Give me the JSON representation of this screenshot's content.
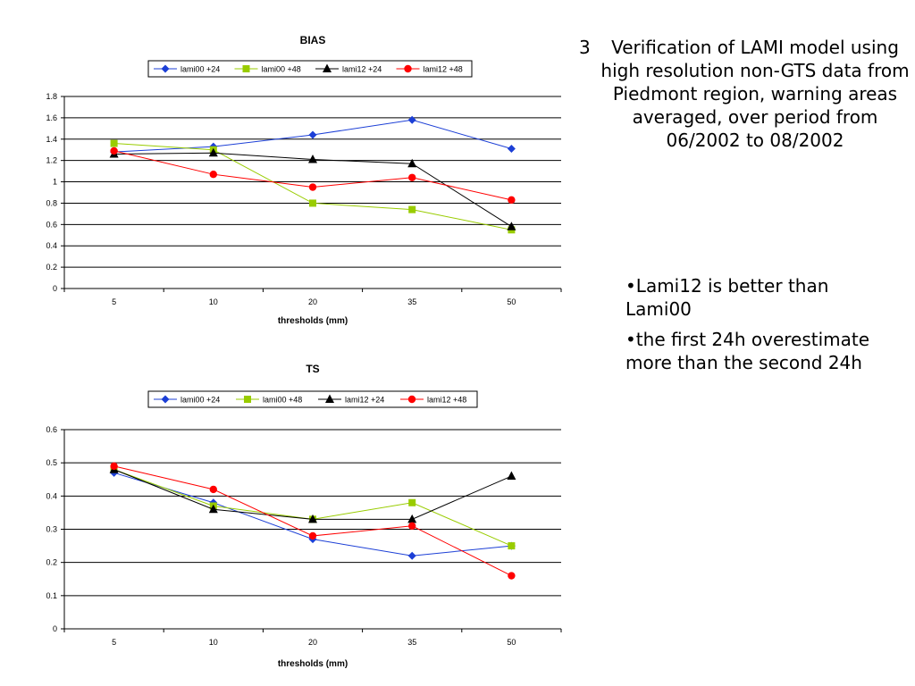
{
  "slide": {
    "heading_number": "3",
    "heading_text": "Verification of LAMI model using high resolution non-GTS data from Piedmont region, warning areas averaged, over period from 06/2002 to 08/2002",
    "bullets": [
      "•Lami12 is better than Lami00",
      "•the first 24h overestimate more than the second 24h"
    ]
  },
  "colors": {
    "lami00_24": "#1c3fd6",
    "lami00_48": "#99cc00",
    "lami12_24": "#000000",
    "lami12_48": "#ff0000"
  },
  "chart_data": [
    {
      "type": "line",
      "title": "BIAS",
      "xlabel": "thresholds (mm)",
      "ylabel": "",
      "categories": [
        "5",
        "10",
        "20",
        "35",
        "50"
      ],
      "ylim": [
        0,
        1.8
      ],
      "yticks": [
        "0",
        "0.2",
        "0.4",
        "0.6",
        "0.8",
        "1",
        "1.2",
        "1.4",
        "1.6",
        "1.8"
      ],
      "grid": true,
      "legend": "top",
      "series": [
        {
          "name": "lami00 +24",
          "marker": "diamond",
          "values": [
            1.28,
            1.33,
            1.44,
            1.58,
            1.31
          ]
        },
        {
          "name": "lami00 +48",
          "marker": "square",
          "values": [
            1.36,
            1.3,
            0.8,
            0.74,
            0.55
          ]
        },
        {
          "name": "lami12 +24",
          "marker": "triangle",
          "values": [
            1.26,
            1.27,
            1.21,
            1.17,
            0.58
          ]
        },
        {
          "name": "lami12 +48",
          "marker": "circle",
          "values": [
            1.29,
            1.07,
            0.95,
            1.04,
            0.83
          ]
        }
      ]
    },
    {
      "type": "line",
      "title": "TS",
      "xlabel": "thresholds (mm)",
      "ylabel": "",
      "categories": [
        "5",
        "10",
        "20",
        "35",
        "50"
      ],
      "ylim": [
        0,
        0.6
      ],
      "yticks": [
        "0",
        "0.1",
        "0.2",
        "0.3",
        "0.4",
        "0.5",
        "0.6"
      ],
      "grid": true,
      "legend": "top",
      "series": [
        {
          "name": "lami00 +24",
          "marker": "diamond",
          "values": [
            0.47,
            0.38,
            0.27,
            0.22,
            0.25
          ]
        },
        {
          "name": "lami00 +48",
          "marker": "square",
          "values": [
            0.48,
            0.37,
            0.33,
            0.38,
            0.25
          ]
        },
        {
          "name": "lami12 +24",
          "marker": "triangle",
          "values": [
            0.48,
            0.36,
            0.33,
            0.33,
            0.46
          ]
        },
        {
          "name": "lami12 +48",
          "marker": "circle",
          "values": [
            0.49,
            0.42,
            0.28,
            0.31,
            0.16
          ]
        }
      ]
    }
  ]
}
